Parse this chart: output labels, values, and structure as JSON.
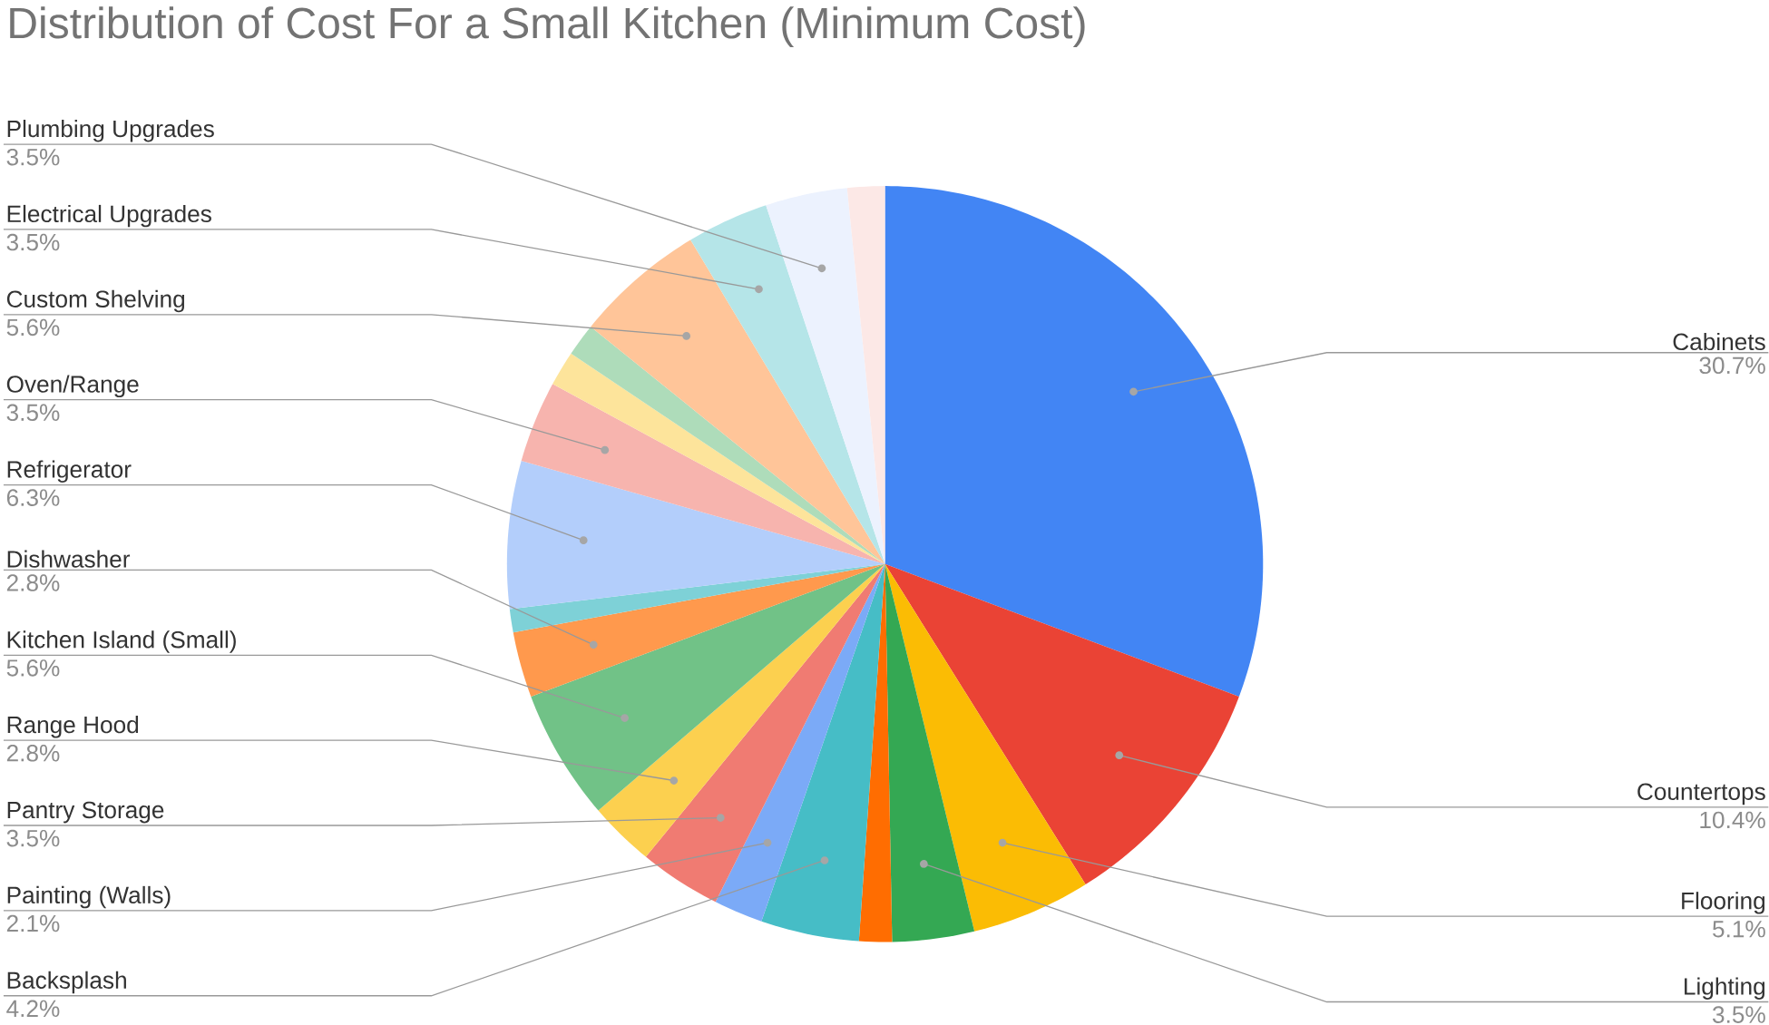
{
  "chart_data": {
    "type": "pie",
    "title": "Distribution of Cost For a Small Kitchen (Minimum Cost)",
    "categories": [
      "Cabinets",
      "Countertops",
      "Flooring",
      "Lighting",
      null,
      "Backsplash",
      "Painting (Walls)",
      "Pantry Storage",
      "Range Hood",
      "Kitchen Island (Small)",
      "Dishwasher",
      null,
      "Refrigerator",
      "Oven/Range",
      null,
      null,
      "Custom Shelving",
      "Electrical Upgrades",
      "Plumbing Upgrades",
      null
    ],
    "values": [
      30.7,
      10.4,
      5.1,
      3.5,
      1.4,
      4.2,
      2.1,
      3.5,
      2.8,
      5.6,
      2.8,
      1.0,
      6.3,
      3.5,
      1.5,
      1.4,
      5.6,
      3.5,
      3.5,
      1.6
    ],
    "value_labels": [
      "30.7%",
      "10.4%",
      "5.1%",
      "3.5%",
      null,
      "4.2%",
      "2.1%",
      "3.5%",
      "2.8%",
      "5.6%",
      "2.8%",
      null,
      "6.3%",
      "3.5%",
      null,
      null,
      "5.6%",
      "3.5%",
      "3.5%",
      null
    ],
    "colors": [
      "#4285f4",
      "#ea4335",
      "#fbbc04",
      "#34a853",
      "#ff6d01",
      "#46bdc6",
      "#7baaf7",
      "#f07b72",
      "#fcd04f",
      "#71c287",
      "#ff994d",
      "#7ed1d7",
      "#b3cefb",
      "#f7b4ae",
      "#fde49b",
      "#aedcba",
      "#ffc599",
      "#b5e5e8",
      "#ecf2fe",
      "#fce8e6"
    ]
  }
}
